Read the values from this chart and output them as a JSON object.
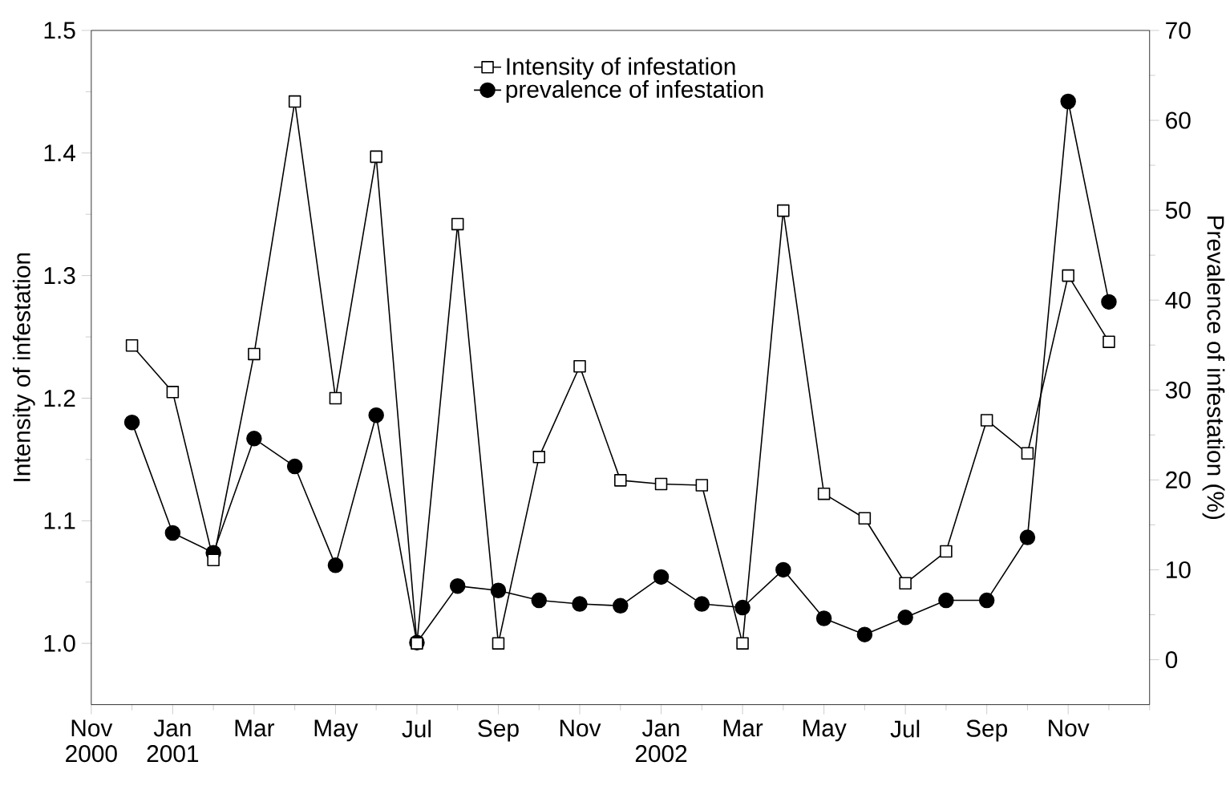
{
  "chart_data": {
    "type": "line",
    "x": [
      "2000-12",
      "2001-01",
      "2001-02",
      "2001-03",
      "2001-04",
      "2001-05",
      "2001-06",
      "2001-07",
      "2001-08",
      "2001-09",
      "2001-10",
      "2001-11",
      "2001-12",
      "2002-01",
      "2002-02",
      "2002-03",
      "2002-04",
      "2002-05",
      "2002-06",
      "2002-07",
      "2002-08",
      "2002-09",
      "2002-10",
      "2002-11",
      "2002-12"
    ],
    "series": [
      {
        "name": "Intensity of infestation",
        "color": "#000000",
        "marker": "square",
        "values": [
          1.243,
          1.205,
          1.068,
          1.236,
          1.442,
          1.2,
          1.397,
          1.0,
          1.342,
          1.0,
          1.152,
          1.226,
          1.133,
          1.13,
          1.129,
          1.0,
          1.353,
          1.122,
          1.102,
          1.049,
          1.075,
          1.182,
          1.155,
          1.3,
          1.246
        ]
      },
      {
        "name": "prevalence of infestation",
        "color": "#000000",
        "marker": "circle",
        "axis": "y2",
        "values": [
          26.4,
          14.1,
          11.9,
          24.6,
          21.5,
          10.5,
          27.2,
          1.9,
          8.2,
          7.7,
          6.6,
          6.2,
          6.0,
          9.2,
          6.2,
          5.8,
          10.0,
          4.6,
          2.8,
          4.7,
          6.6,
          6.6,
          13.6,
          62.1,
          39.8
        ]
      }
    ],
    "ylabel": "Intensity of infestation",
    "y2label": "Prevalence of infestation (%)",
    "xlim": [
      "2000-11",
      "2003-01"
    ],
    "xticks": [
      {
        "value": "2000-11",
        "label": "Nov 2000"
      },
      {
        "value": "2000-12",
        "label": null
      },
      {
        "value": "2001-01",
        "label": "Jan 2001"
      },
      {
        "value": "2001-02",
        "label": null
      },
      {
        "value": "2001-03",
        "label": "Mar"
      },
      {
        "value": "2001-04",
        "label": null
      },
      {
        "value": "2001-05",
        "label": "May"
      },
      {
        "value": "2001-06",
        "label": null
      },
      {
        "value": "2001-07",
        "label": "Jul"
      },
      {
        "value": "2001-08",
        "label": null
      },
      {
        "value": "2001-09",
        "label": "Sep"
      },
      {
        "value": "2001-10",
        "label": null
      },
      {
        "value": "2001-11",
        "label": "Nov"
      },
      {
        "value": "2001-12",
        "label": null
      },
      {
        "value": "2002-01",
        "label": "Jan 2002"
      },
      {
        "value": "2002-02",
        "label": null
      },
      {
        "value": "2002-03",
        "label": "Mar"
      },
      {
        "value": "2002-04",
        "label": null
      },
      {
        "value": "2002-05",
        "label": "May"
      },
      {
        "value": "2002-06",
        "label": null
      },
      {
        "value": "2002-07",
        "label": "Jul"
      },
      {
        "value": "2002-08",
        "label": null
      },
      {
        "value": "2002-09",
        "label": "Sep"
      },
      {
        "value": "2002-10",
        "label": null
      },
      {
        "value": "2002-11",
        "label": "Nov"
      },
      {
        "value": "2002-12",
        "label": null
      },
      {
        "value": "2003-01",
        "label": null
      }
    ],
    "ylim": [
      0.95,
      1.5
    ],
    "yticks": [
      {
        "value": 1.0,
        "label": "1.0"
      },
      {
        "value": 1.05,
        "label": null
      },
      {
        "value": 1.1,
        "label": "1.1"
      },
      {
        "value": 1.15,
        "label": null
      },
      {
        "value": 1.2,
        "label": "1.2"
      },
      {
        "value": 1.25,
        "label": null
      },
      {
        "value": 1.3,
        "label": "1.3"
      },
      {
        "value": 1.35,
        "label": null
      },
      {
        "value": 1.4,
        "label": "1.4"
      },
      {
        "value": 1.45,
        "label": null
      },
      {
        "value": 1.5,
        "label": "1.5"
      }
    ],
    "y2lim": [
      -5,
      70
    ],
    "y2ticks": [
      0,
      {
        "value": 5,
        "label": null
      },
      10,
      {
        "value": 15,
        "label": null
      },
      20,
      {
        "value": 25,
        "label": null
      },
      30,
      {
        "value": 35,
        "label": null
      },
      40,
      {
        "value": 45,
        "label": null
      },
      50,
      {
        "value": 55,
        "label": null
      },
      60,
      {
        "value": 65,
        "label": null
      },
      70
    ],
    "legend": "top",
    "grid": false,
    "line_style": "solid"
  }
}
